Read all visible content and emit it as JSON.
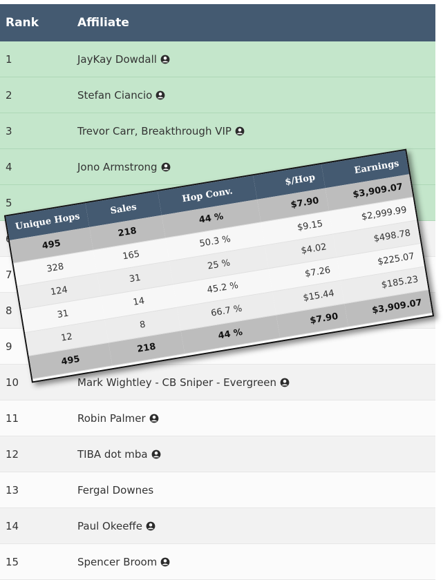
{
  "main_table": {
    "headers": {
      "rank": "Rank",
      "affiliate": "Affiliate"
    },
    "rows": [
      {
        "rank": "1",
        "name": "JayKay Dowdall",
        "icon": "user-circle-icon",
        "highlight": true
      },
      {
        "rank": "2",
        "name": "Stefan Ciancio",
        "icon": "user-circle-icon",
        "highlight": true
      },
      {
        "rank": "3",
        "name": "Trevor Carr, Breakthrough VIP",
        "icon": "user-circle-icon",
        "highlight": true
      },
      {
        "rank": "4",
        "name": "Jono Armstrong",
        "icon": "user-circle-icon",
        "highlight": true
      },
      {
        "rank": "5",
        "name": "",
        "icon": "",
        "highlight": true
      },
      {
        "rank": "6",
        "name": "",
        "icon": "",
        "highlight": false
      },
      {
        "rank": "7",
        "name": "",
        "icon": "",
        "highlight": false
      },
      {
        "rank": "8",
        "name": "",
        "icon": "",
        "highlight": false
      },
      {
        "rank": "9",
        "name": "",
        "icon": "",
        "highlight": false
      },
      {
        "rank": "10",
        "name": "Mark Wightley - CB Sniper - Evergreen",
        "icon": "user-circle-icon",
        "highlight": false
      },
      {
        "rank": "11",
        "name": "Robin Palmer",
        "icon": "user-circle-icon",
        "highlight": false
      },
      {
        "rank": "12",
        "name": "TIBA dot mba",
        "icon": "user-circle-icon",
        "highlight": false
      },
      {
        "rank": "13",
        "name": "Fergal Downes",
        "icon": "",
        "highlight": false
      },
      {
        "rank": "14",
        "name": "Paul Okeeffe",
        "icon": "user-circle-icon",
        "highlight": false
      },
      {
        "rank": "15",
        "name": "Spencer Broom",
        "icon": "user-circle-icon",
        "highlight": false
      }
    ]
  },
  "popup_table": {
    "headers": {
      "unique_hops": "Unique Hops",
      "sales": "Sales",
      "hop_conv": "Hop Conv.",
      "per_hop": "$/Hop",
      "earnings": "Earnings"
    },
    "rows": [
      {
        "unique_hops": "495",
        "sales": "218",
        "hop_conv": "44 %",
        "per_hop": "$7.90",
        "earnings": "$3,909.07",
        "summary": true
      },
      {
        "unique_hops": "328",
        "sales": "165",
        "hop_conv": "50.3 %",
        "per_hop": "$9.15",
        "earnings": "$2,999.99",
        "summary": false
      },
      {
        "unique_hops": "124",
        "sales": "31",
        "hop_conv": "25 %",
        "per_hop": "$4.02",
        "earnings": "$498.78",
        "summary": false
      },
      {
        "unique_hops": "31",
        "sales": "14",
        "hop_conv": "45.2 %",
        "per_hop": "$7.26",
        "earnings": "$225.07",
        "summary": false
      },
      {
        "unique_hops": "12",
        "sales": "8",
        "hop_conv": "66.7 %",
        "per_hop": "$15.44",
        "earnings": "$185.23",
        "summary": false
      },
      {
        "unique_hops": "495",
        "sales": "218",
        "hop_conv": "44 %",
        "per_hop": "$7.90",
        "earnings": "$3,909.07",
        "summary": true
      }
    ]
  },
  "colors": {
    "header_bg": "#445a71",
    "highlight_row": "#c4e6cb",
    "summary_row": "#bdbdbd"
  }
}
